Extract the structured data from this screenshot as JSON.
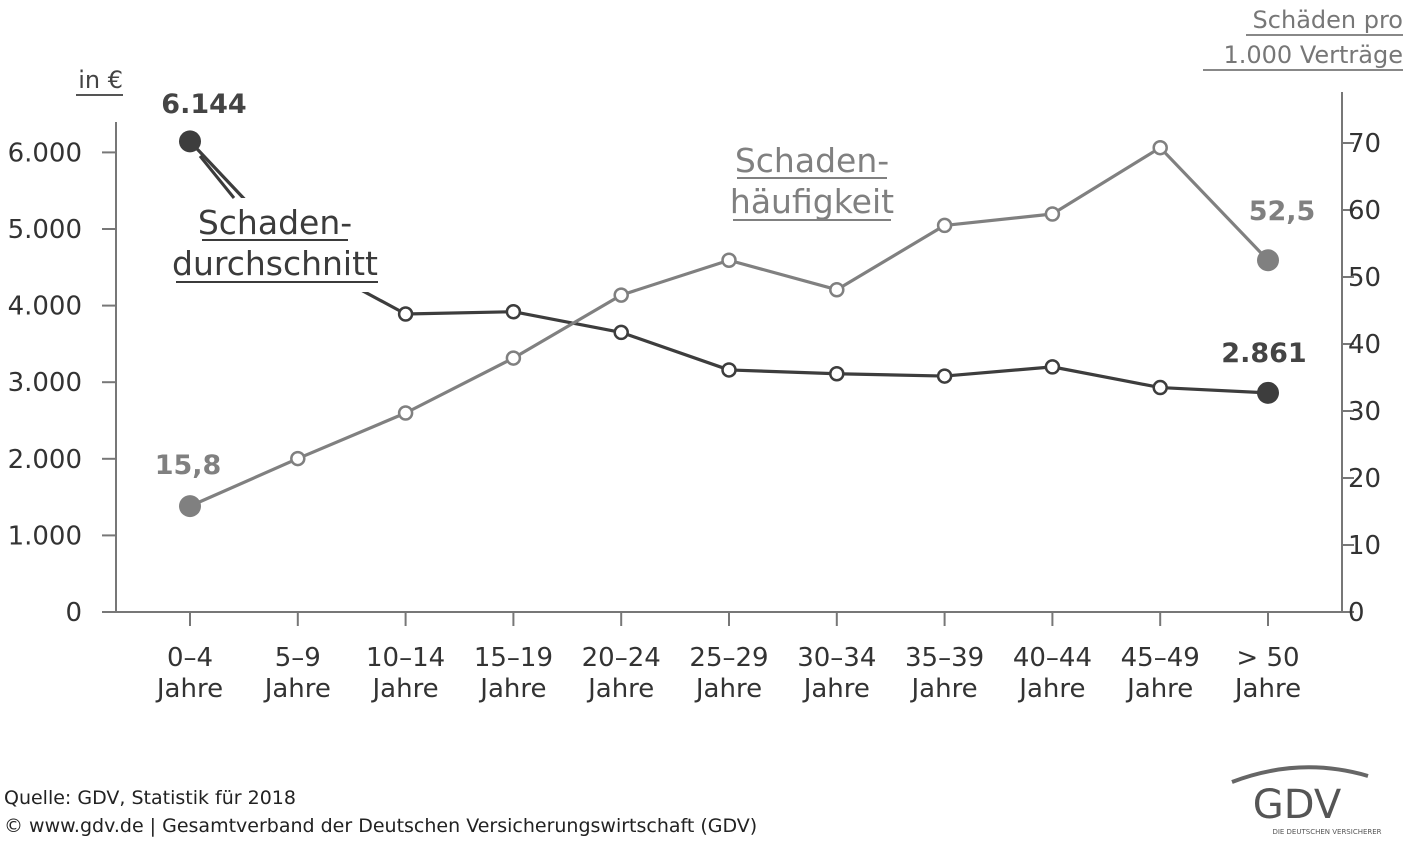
{
  "chart_data": {
    "type": "line",
    "left_axis": {
      "unit_label": "in €",
      "ylim": [
        0,
        6144
      ],
      "ticks": [
        "0",
        "1.000",
        "2.000",
        "3.000",
        "4.000",
        "5.000",
        "6.000"
      ]
    },
    "right_axis": {
      "unit_label_lines": [
        "Schäden pro",
        "1.000 Verträge"
      ],
      "ylim": [
        0,
        70
      ],
      "ticks": [
        "0",
        "10",
        "20",
        "30",
        "40",
        "50",
        "60",
        "70"
      ]
    },
    "categories": [
      [
        "0–4",
        "Jahre"
      ],
      [
        "5–9",
        "Jahre"
      ],
      [
        "10–14",
        "Jahre"
      ],
      [
        "15–19",
        "Jahre"
      ],
      [
        "20–24",
        "Jahre"
      ],
      [
        "25–29",
        "Jahre"
      ],
      [
        "30–34",
        "Jahre"
      ],
      [
        "35–39",
        "Jahre"
      ],
      [
        "40–44",
        "Jahre"
      ],
      [
        "45–49",
        "Jahre"
      ],
      [
        "> 50",
        "Jahre"
      ]
    ],
    "series": [
      {
        "name_lines": [
          "Schaden-",
          "durchschnitt"
        ],
        "axis": "left",
        "color": "#3d3d3d",
        "values": [
          6144,
          4650,
          3890,
          3920,
          3650,
          3160,
          3110,
          3080,
          3200,
          2930,
          2861
        ],
        "labels": {
          "first": "6.144",
          "last": "2.861"
        }
      },
      {
        "name_lines": [
          "Schaden-",
          "häufigkeit"
        ],
        "axis": "right",
        "color": "#808080",
        "values": [
          15.8,
          22.9,
          29.7,
          37.9,
          47.3,
          52.5,
          48.1,
          57.7,
          59.4,
          69.3,
          52.5
        ],
        "labels": {
          "first": "15,8",
          "last": "52,5"
        }
      }
    ],
    "grid": false
  },
  "footer": {
    "source": "Quelle: GDV, Statistik für 2018",
    "copyright": "© www.gdv.de | Gesamtverband der Deutschen Versicherungswirtschaft (GDV)"
  },
  "logo": {
    "text": "GDV",
    "tagline": "DIE DEUTSCHEN VERSICHERER"
  }
}
